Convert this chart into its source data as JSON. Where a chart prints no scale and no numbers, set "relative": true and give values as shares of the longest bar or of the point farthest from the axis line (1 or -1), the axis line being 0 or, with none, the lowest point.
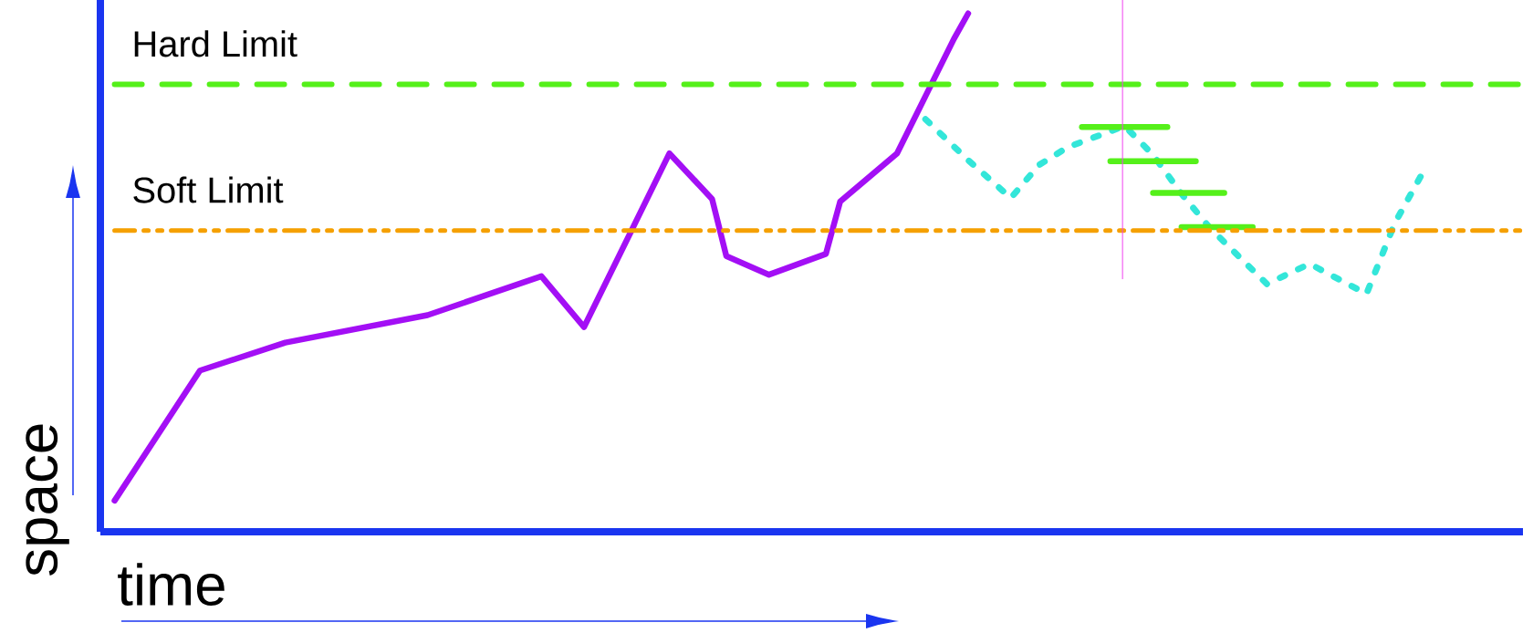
{
  "chart_data": {
    "type": "line",
    "relative": true,
    "xlabel": "time",
    "ylabel": "space",
    "categories": [
      null,
      null,
      null,
      null,
      null,
      null,
      null,
      null,
      null,
      null,
      null,
      null,
      null,
      null,
      null,
      null,
      null,
      null,
      null,
      null,
      null,
      null,
      null,
      null,
      null,
      null,
      null,
      null,
      null,
      null,
      null,
      null,
      null,
      null,
      null,
      null,
      null,
      null,
      null,
      null,
      null,
      null,
      null,
      null,
      null,
      null,
      null,
      null,
      null,
      null,
      null,
      null,
      null,
      null,
      null,
      null,
      null,
      null,
      null,
      null,
      null,
      null,
      null,
      null,
      null,
      null,
      null,
      null,
      null,
      null,
      null,
      null,
      null,
      null,
      null,
      null,
      null,
      null,
      null,
      null,
      null,
      null,
      null,
      null,
      null,
      null,
      null,
      null,
      null,
      null,
      null,
      null,
      null
    ],
    "series": [
      {
        "color": "#a30ff5",
        "line_style": "solid",
        "values": [
          0.06,
          null,
          null,
          null,
          null,
          null,
          0.311,
          null,
          null,
          null,
          null,
          null,
          0.365,
          null,
          null,
          null,
          null,
          null,
          null,
          null,
          null,
          null,
          0.418,
          null,
          null,
          null,
          null,
          null,
          null,
          null,
          0.493,
          null,
          null,
          0.395,
          null,
          null,
          null,
          null,
          null,
          0.73,
          null,
          null,
          0.642,
          0.532,
          null,
          null,
          0.496,
          null,
          null,
          null,
          0.536,
          0.637,
          null,
          null,
          null,
          0.73,
          null,
          null,
          null,
          0.951,
          1.0,
          null,
          null,
          null,
          null,
          null,
          null,
          null,
          null,
          null,
          null,
          null,
          null,
          null,
          null,
          null,
          null,
          null,
          null,
          null,
          null,
          null,
          null,
          null,
          null,
          null,
          null,
          null,
          null,
          null,
          null,
          null,
          null
        ]
      },
      {
        "color": "#33e6d9",
        "line_style": "dotted",
        "values": [
          null,
          null,
          null,
          null,
          null,
          null,
          null,
          null,
          null,
          null,
          null,
          null,
          null,
          null,
          null,
          null,
          null,
          null,
          null,
          null,
          null,
          null,
          null,
          null,
          null,
          null,
          null,
          null,
          null,
          null,
          null,
          null,
          null,
          null,
          null,
          null,
          null,
          null,
          null,
          null,
          null,
          null,
          null,
          null,
          null,
          null,
          null,
          null,
          null,
          null,
          null,
          null,
          null,
          null,
          null,
          null,
          null,
          0.796,
          null,
          null,
          0.717,
          null,
          null,
          0.644,
          null,
          0.708,
          null,
          0.742,
          null,
          null,
          null,
          0.783,
          null,
          0.727,
          null,
          0.652,
          null,
          0.586,
          null,
          null,
          null,
          0.478,
          null,
          null,
          0.517,
          null,
          null,
          null,
          0.459,
          null,
          0.596,
          null,
          0.695
        ]
      },
      {
        "color": "#55f01a",
        "line_style": "solid",
        "values": [
          null,
          null,
          null,
          null,
          null,
          null,
          null,
          null,
          null,
          null,
          null,
          null,
          null,
          null,
          null,
          null,
          null,
          null,
          null,
          null,
          null,
          null,
          null,
          null,
          null,
          null,
          null,
          null,
          null,
          null,
          null,
          null,
          null,
          null,
          null,
          null,
          null,
          null,
          null,
          null,
          null,
          null,
          null,
          null,
          null,
          null,
          null,
          null,
          null,
          null,
          null,
          null,
          null,
          null,
          null,
          null,
          null,
          null,
          null,
          null,
          null,
          null,
          null,
          null,
          null,
          null,
          null,
          null,
          0.781,
          null,
          null,
          null,
          null,
          null,
          0.781,
          null,
          null,
          null,
          null,
          null,
          null,
          null,
          null,
          null,
          null,
          null,
          null,
          null,
          null,
          null,
          null,
          null,
          null
        ]
      },
      {
        "color": "#55f01a",
        "line_style": "solid",
        "values": [
          null,
          null,
          null,
          null,
          null,
          null,
          null,
          null,
          null,
          null,
          null,
          null,
          null,
          null,
          null,
          null,
          null,
          null,
          null,
          null,
          null,
          null,
          null,
          null,
          null,
          null,
          null,
          null,
          null,
          null,
          null,
          null,
          null,
          null,
          null,
          null,
          null,
          null,
          null,
          null,
          null,
          null,
          null,
          null,
          null,
          null,
          null,
          null,
          null,
          null,
          null,
          null,
          null,
          null,
          null,
          null,
          null,
          null,
          null,
          null,
          null,
          null,
          null,
          null,
          null,
          null,
          null,
          null,
          null,
          null,
          0.715,
          null,
          null,
          null,
          null,
          null,
          0.715,
          null,
          null,
          null,
          null,
          null,
          null,
          null,
          null,
          null,
          null,
          null,
          null,
          null,
          null,
          null,
          null
        ]
      },
      {
        "color": "#55f01a",
        "line_style": "solid",
        "values": [
          null,
          null,
          null,
          null,
          null,
          null,
          null,
          null,
          null,
          null,
          null,
          null,
          null,
          null,
          null,
          null,
          null,
          null,
          null,
          null,
          null,
          null,
          null,
          null,
          null,
          null,
          null,
          null,
          null,
          null,
          null,
          null,
          null,
          null,
          null,
          null,
          null,
          null,
          null,
          null,
          null,
          null,
          null,
          null,
          null,
          null,
          null,
          null,
          null,
          null,
          null,
          null,
          null,
          null,
          null,
          null,
          null,
          null,
          null,
          null,
          null,
          null,
          null,
          null,
          null,
          null,
          null,
          null,
          null,
          null,
          null,
          null,
          null,
          0.654,
          null,
          null,
          null,
          null,
          0.654,
          null,
          null,
          null,
          null,
          null,
          null,
          null,
          null,
          null,
          null,
          null,
          null,
          null,
          null
        ]
      },
      {
        "color": "#55f01a",
        "line_style": "solid",
        "values": [
          null,
          null,
          null,
          null,
          null,
          null,
          null,
          null,
          null,
          null,
          null,
          null,
          null,
          null,
          null,
          null,
          null,
          null,
          null,
          null,
          null,
          null,
          null,
          null,
          null,
          null,
          null,
          null,
          null,
          null,
          null,
          null,
          null,
          null,
          null,
          null,
          null,
          null,
          null,
          null,
          null,
          null,
          null,
          null,
          null,
          null,
          null,
          null,
          null,
          null,
          null,
          null,
          null,
          null,
          null,
          null,
          null,
          null,
          null,
          null,
          null,
          null,
          null,
          null,
          null,
          null,
          null,
          null,
          null,
          null,
          null,
          null,
          null,
          null,
          null,
          0.588,
          null,
          null,
          null,
          null,
          0.588,
          null,
          null,
          null,
          null,
          null,
          null,
          null,
          null,
          null,
          null,
          null,
          null
        ]
      }
    ],
    "ref_lines": [
      {
        "axis": "y",
        "value": 0.863,
        "label": "Hard Limit",
        "color": "#55f01a",
        "line_style": "dashed"
      },
      {
        "axis": "y",
        "value": 0.581,
        "label": "Soft Limit",
        "color": "#f5a000",
        "line_style": "dashdotdotted"
      }
    ]
  }
}
